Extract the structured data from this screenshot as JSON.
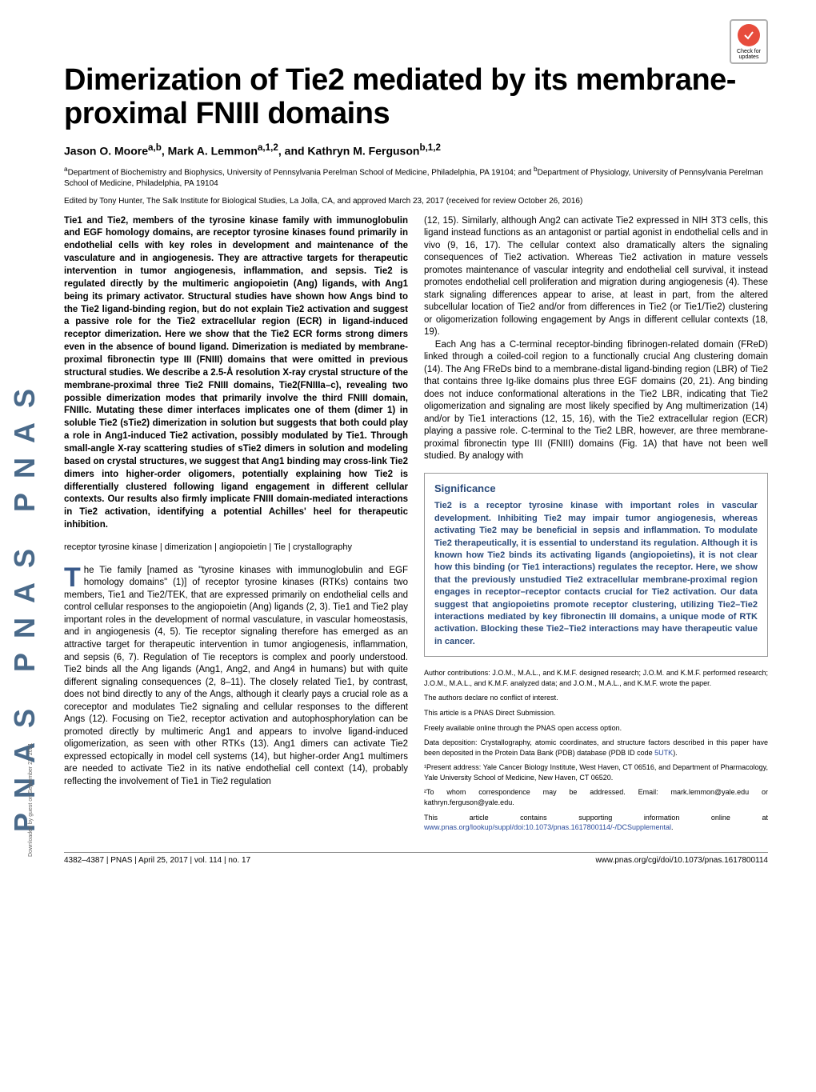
{
  "crossmark": {
    "label": "Check for updates"
  },
  "spine": "PNAS   PNAS   PNAS",
  "title": "Dimerization of Tie2 mediated by its membrane-proximal FNIII domains",
  "authors_html": "Jason O. Moore<sup>a,b</sup>, Mark A. Lemmon<sup>a,1,2</sup>, and Kathryn M. Ferguson<sup>b,1,2</sup>",
  "affiliations_html": "<sup>a</sup>Department of Biochemistry and Biophysics, University of Pennsylvania Perelman School of Medicine, Philadelphia, PA 19104; and <sup>b</sup>Department of Physiology, University of Pennsylvania Perelman School of Medicine, Philadelphia, PA 19104",
  "edited": "Edited by Tony Hunter, The Salk Institute for Biological Studies, La Jolla, CA, and approved March 23, 2017 (received for review October 26, 2016)",
  "abstract": "Tie1 and Tie2, members of the tyrosine kinase family with immunoglobulin and EGF homology domains, are receptor tyrosine kinases found primarily in endothelial cells with key roles in development and maintenance of the vasculature and in angiogenesis. They are attractive targets for therapeutic intervention in tumor angiogenesis, inflammation, and sepsis. Tie2 is regulated directly by the multimeric angiopoietin (Ang) ligands, with Ang1 being its primary activator. Structural studies have shown how Angs bind to the Tie2 ligand-binding region, but do not explain Tie2 activation and suggest a passive role for the Tie2 extracellular region (ECR) in ligand-induced receptor dimerization. Here we show that the Tie2 ECR forms strong dimers even in the absence of bound ligand. Dimerization is mediated by membrane-proximal fibronectin type III (FNIII) domains that were omitted in previous structural studies. We describe a 2.5-Å resolution X-ray crystal structure of the membrane-proximal three Tie2 FNIII domains, Tie2(FNIIIa–c), revealing two possible dimerization modes that primarily involve the third FNIII domain, FNIIIc. Mutating these dimer interfaces implicates one of them (dimer 1) in soluble Tie2 (sTie2) dimerization in solution but suggests that both could play a role in Ang1-induced Tie2 activation, possibly modulated by Tie1. Through small-angle X-ray scattering studies of sTie2 dimers in solution and modeling based on crystal structures, we suggest that Ang1 binding may cross-link Tie2 dimers into higher-order oligomers, potentially explaining how Tie2 is differentially clustered following ligand engagement in different cellular contexts. Our results also firmly implicate FNIII domain-mediated interactions in Tie2 activation, identifying a potential Achilles' heel for therapeutic inhibition.",
  "keywords": "receptor tyrosine kinase | dimerization | angiopoietin | Tie | crystallography",
  "body_col1": [
    "he Tie family [named as \"tyrosine kinases with immunoglobulin and EGF homology domains\" (1)] of receptor tyrosine kinases (RTKs) contains two members, Tie1 and Tie2/TEK, that are expressed primarily on endothelial cells and control cellular responses to the angiopoietin (Ang) ligands (2, 3). Tie1 and Tie2 play important roles in the development of normal vasculature, in vascular homeostasis, and in angiogenesis (4, 5). Tie receptor signaling therefore has emerged as an attractive target for therapeutic intervention in tumor angiogenesis, inflammation, and sepsis (6, 7). Regulation of Tie receptors is complex and poorly understood. Tie2 binds all the Ang ligands (Ang1, Ang2, and Ang4 in humans) but with quite different signaling consequences (2, 8–11). The closely related Tie1, by contrast, does not bind directly to any of the Angs, although it clearly pays a crucial role as a coreceptor and modulates Tie2 signaling and cellular responses to the different Angs (12). Focusing on Tie2, receptor activation and autophosphorylation can be promoted directly by multimeric Ang1 and appears to involve ligand-induced oligomerization, as seen with other RTKs (13). Ang1 dimers can activate Tie2 expressed ectopically in model cell systems (14), but higher-order Ang1 multimers are needed to activate Tie2 in its native endothelial cell context (14), probably reflecting the involvement of Tie1 in Tie2 regulation"
  ],
  "body_col2_top": "(12, 15). Similarly, although Ang2 can activate Tie2 expressed in NIH 3T3 cells, this ligand instead functions as an antagonist or partial agonist in endothelial cells and in vivo (9, 16, 17). The cellular context also dramatically alters the signaling consequences of Tie2 activation. Whereas Tie2 activation in mature vessels promotes maintenance of vascular integrity and endothelial cell survival, it instead promotes endothelial cell proliferation and migration during angiogenesis (4). These stark signaling differences appear to arise, at least in part, from the altered subcellular location of Tie2 and/or from differences in Tie2 (or Tie1/Tie2) clustering or oligomerization following engagement by Angs in different cellular contexts (18, 19).",
  "body_col2_para2": "Each Ang has a C-terminal receptor-binding fibrinogen-related domain (FReD) linked through a coiled-coil region to a functionally crucial Ang clustering domain (14). The Ang FReDs bind to a membrane-distal ligand-binding region (LBR) of Tie2 that contains three Ig-like domains plus three EGF domains (20, 21). Ang binding does not induce conformational alterations in the Tie2 LBR, indicating that Tie2 oligomerization and signaling are most likely specified by Ang multimerization (14) and/or by Tie1 interactions (12, 15, 16), with the Tie2 extracellular region (ECR) playing a passive role. C-terminal to the Tie2 LBR, however, are three membrane-proximal fibronectin type III (FNIII) domains (Fig. 1A) that have not been well studied. By analogy with",
  "significance": {
    "heading": "Significance",
    "body": "Tie2 is a receptor tyrosine kinase with important roles in vascular development. Inhibiting Tie2 may impair tumor angiogenesis, whereas activating Tie2 may be beneficial in sepsis and inflammation. To modulate Tie2 therapeutically, it is essential to understand its regulation. Although it is known how Tie2 binds its activating ligands (angiopoietins), it is not clear how this binding (or Tie1 interactions) regulates the receptor. Here, we show that the previously unstudied Tie2 extracellular membrane-proximal region engages in receptor–receptor contacts crucial for Tie2 activation. Our data suggest that angiopoietins promote receptor clustering, utilizing Tie2–Tie2 interactions mediated by key fibronectin III domains, a unique mode of RTK activation. Blocking these Tie2–Tie2 interactions may have therapeutic value in cancer."
  },
  "meta": {
    "contrib": "Author contributions: J.O.M., M.A.L., and K.M.F. designed research; J.O.M. and K.M.F. performed research; J.O.M., M.A.L., and K.M.F. analyzed data; and J.O.M., M.A.L., and K.M.F. wrote the paper.",
    "conflict": "The authors declare no conflict of interest.",
    "direct": "This article is a PNAS Direct Submission.",
    "openaccess": "Freely available online through the PNAS open access option.",
    "deposition_html": "Data deposition: Crystallography, atomic coordinates, and structure factors described in this paper have been deposited in the Protein Data Bank (PDB) database (PDB ID code <a>5UTK</a>).",
    "present": "¹Present address: Yale Cancer Biology Institute, West Haven, CT 06516, and Department of Pharmacology, Yale University School of Medicine, New Haven, CT 06520.",
    "corr": "²To whom correspondence may be addressed. Email: mark.lemmon@yale.edu or kathryn.ferguson@yale.edu.",
    "supp_html": "This article contains supporting information online at <a>www.pnas.org/lookup/suppl/doi:10.1073/pnas.1617800114/-/DCSupplemental</a>."
  },
  "footer": {
    "left": "4382–4387  |  PNAS  |  April 25, 2017  |  vol. 114  |  no. 17",
    "right": "www.pnas.org/cgi/doi/10.1073/pnas.1617800114"
  },
  "download_note": "Downloaded by guest on September 27, 2021"
}
